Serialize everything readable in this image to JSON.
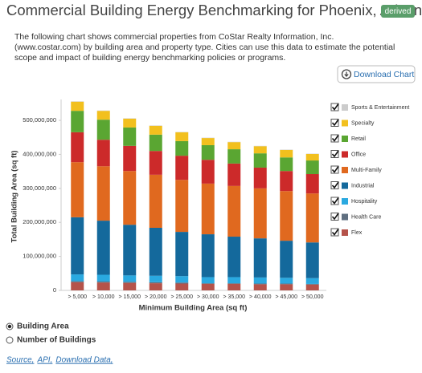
{
  "header": {
    "title": "Commercial Building Energy Benchmarking for Phoenix, Arizona",
    "badge": "derived"
  },
  "description": "The following chart shows commercial properties from CoStar Realty Information, Inc. (www.costar.com) by building area and property type. Cities can use this data to estimate the potential scope and impact of building energy benchmarking policies or programs.",
  "button": "Download Chart",
  "chart_data": {
    "type": "stacked-bar",
    "x_label": "Minimum Building Area (sq ft)",
    "y_label": "Total Building Area (sq ft)",
    "categories": [
      "> 5,000",
      "> 10,000",
      "> 15,000",
      "> 20,000",
      "> 25,000",
      "> 30,000",
      "> 35,000",
      "> 40,000",
      "> 45,000",
      "> 50,000"
    ],
    "ylim": [
      0,
      560000000
    ],
    "yticks": [
      0,
      {
        "value": 100000000,
        "label": "100,000,000"
      },
      {
        "value": 200000000,
        "label": "200,000,000"
      },
      {
        "value": 300000000,
        "label": "300,000,000"
      },
      {
        "value": 400000000,
        "label": "400,000,000"
      },
      {
        "value": 500000000,
        "label": "500,000,000"
      }
    ],
    "grid": false,
    "legend": "right",
    "series": [
      {
        "name": "Flex",
        "color": "#b5534a",
        "values": [
          24000000,
          23000000,
          22000000,
          21000000,
          20000000,
          19000000,
          19000000,
          18000000,
          18000000,
          17000000
        ]
      },
      {
        "name": "Health Care",
        "color": "#5f6f80",
        "values": [
          3000000,
          3000000,
          3000000,
          3000000,
          3000000,
          2000000,
          2000000,
          2000000,
          2000000,
          2000000
        ]
      },
      {
        "name": "Hospitality",
        "color": "#2aa9e0",
        "values": [
          20000000,
          20000000,
          19000000,
          19000000,
          19000000,
          18000000,
          18000000,
          18000000,
          17000000,
          17000000
        ]
      },
      {
        "name": "Industrial",
        "color": "#14699c",
        "values": [
          168000000,
          159000000,
          149000000,
          141000000,
          130000000,
          126000000,
          119000000,
          115000000,
          109000000,
          105000000
        ]
      },
      {
        "name": "Multi-Family",
        "color": "#e0691f",
        "values": [
          162000000,
          160000000,
          158000000,
          156000000,
          153000000,
          149000000,
          149000000,
          147000000,
          146000000,
          144000000
        ]
      },
      {
        "name": "Office",
        "color": "#cc2a2a",
        "values": [
          88000000,
          78000000,
          74000000,
          70000000,
          71000000,
          70000000,
          66000000,
          61000000,
          59000000,
          57000000
        ]
      },
      {
        "name": "Retail",
        "color": "#5aa632",
        "values": [
          63000000,
          59000000,
          54000000,
          48000000,
          43000000,
          43000000,
          42000000,
          42000000,
          40000000,
          40000000
        ]
      },
      {
        "name": "Specialty",
        "color": "#f2c01e",
        "values": [
          27000000,
          26000000,
          26000000,
          26000000,
          26000000,
          21000000,
          21000000,
          21000000,
          22000000,
          19000000
        ]
      },
      {
        "name": "Sports & Entertainment",
        "color": "#cccccc",
        "values": [
          1000000,
          1000000,
          1000000,
          1000000,
          1000000,
          1000000,
          1000000,
          1000000,
          1000000,
          1000000
        ]
      }
    ]
  },
  "radios": [
    {
      "label": "Building Area",
      "checked": true
    },
    {
      "label": "Number of Buildings",
      "checked": false
    }
  ],
  "links": [
    "Source,",
    "API,",
    "Download Data,"
  ]
}
